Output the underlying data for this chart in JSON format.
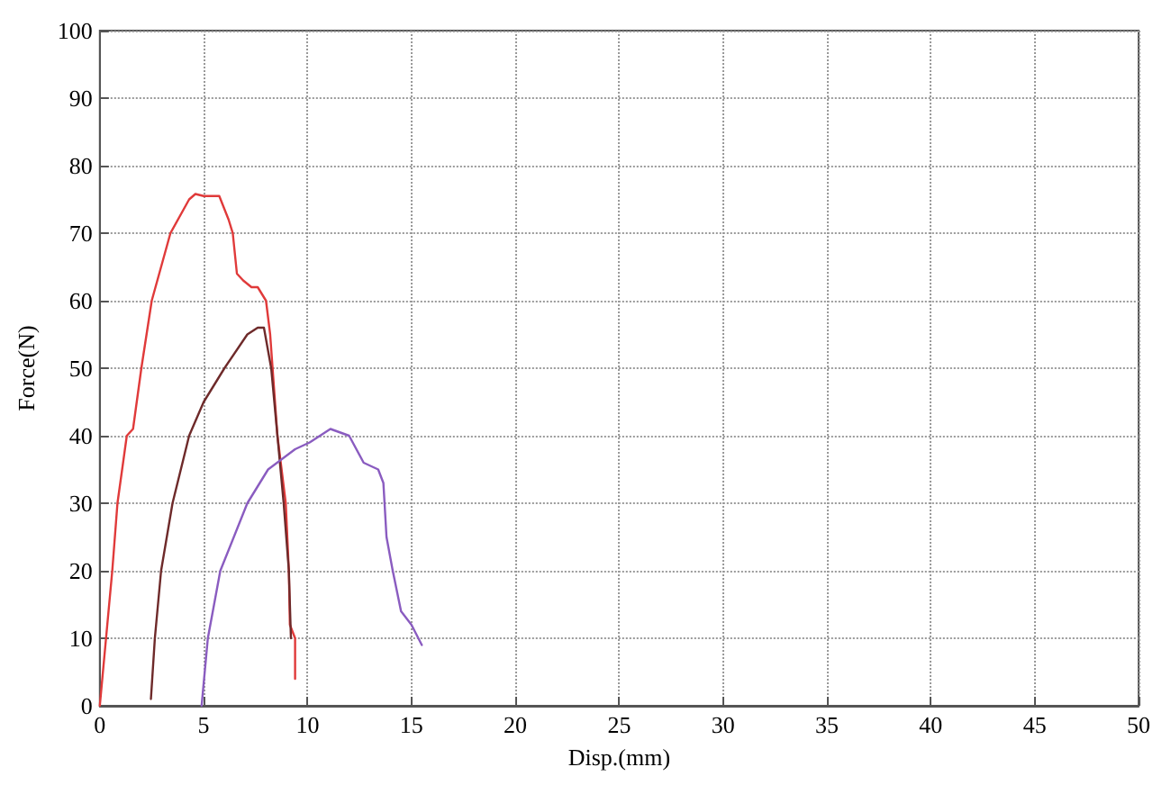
{
  "chart_data": {
    "type": "line",
    "xlabel": "Disp.(mm)",
    "ylabel": "Force(N)",
    "xlim": [
      0,
      50
    ],
    "xticks": [
      0,
      5,
      10,
      15,
      20,
      25,
      30,
      35,
      40,
      45,
      50
    ],
    "ylim": [
      0,
      100
    ],
    "yticks": [
      0,
      10,
      20,
      30,
      40,
      50,
      60,
      70,
      80,
      90,
      100
    ],
    "grid": true,
    "marker": "none",
    "line_style": "solid",
    "series": [
      {
        "color": "#e03a3a",
        "x": [
          0,
          0.3,
          0.6,
          0.85,
          1.3,
          1.6,
          2.0,
          2.5,
          3.4,
          4.3,
          4.6,
          5.0,
          5.5,
          5.75,
          6.2,
          6.4,
          6.6,
          6.9,
          7.3,
          7.6,
          8.0,
          8.2,
          8.55,
          8.95,
          9.1,
          9.15,
          9.4,
          9.4
        ],
        "values": [
          0,
          10,
          20,
          30,
          40,
          41,
          50,
          60,
          70,
          75,
          75.8,
          75.5,
          75.5,
          75.5,
          72,
          70,
          64,
          63,
          62,
          62,
          60,
          55,
          40,
          30,
          20,
          12,
          10,
          4
        ]
      },
      {
        "color": "#6e2a2a",
        "x": [
          2.46,
          2.65,
          2.95,
          3.5,
          4.3,
          5.0,
          6.0,
          7.1,
          7.6,
          7.9,
          8.25,
          8.55,
          8.85,
          9.1,
          9.2
        ],
        "values": [
          1,
          10,
          20,
          30,
          40,
          45,
          50,
          55,
          56,
          56,
          50,
          40,
          30,
          20,
          10
        ]
      },
      {
        "color": "#8a5cc0",
        "x": [
          4.9,
          5.2,
          5.8,
          7.1,
          8.1,
          9.4,
          10.1,
          11.1,
          12.0,
          12.7,
          13.4,
          13.65,
          13.8,
          14.1,
          14.5,
          15.0,
          15.5
        ],
        "values": [
          0,
          10,
          20,
          30,
          35,
          38,
          39,
          41,
          40,
          36,
          35,
          33,
          25,
          20,
          14,
          12,
          9
        ]
      }
    ]
  }
}
